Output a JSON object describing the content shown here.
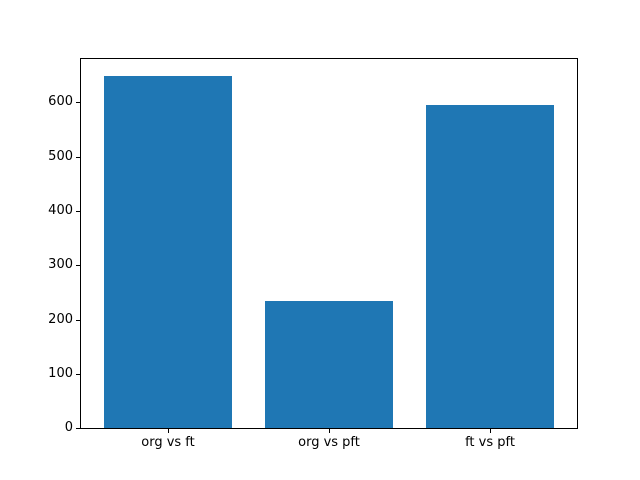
{
  "figure": {
    "background_color": "#ffffff"
  },
  "chart_data": {
    "type": "bar",
    "title": "",
    "xlabel": "",
    "ylabel": "",
    "categories": [
      "org vs ft",
      "org vs pft",
      "ft vs pft"
    ],
    "values": [
      648,
      235,
      596
    ],
    "bar_color": "#1f77b4",
    "bar_width": 0.8,
    "ylim": [
      0,
      680
    ],
    "yticks": [
      0,
      100,
      200,
      300,
      400,
      500,
      600
    ],
    "grid": false,
    "legend_position": "none",
    "axis_color": "#000000",
    "tick_label_color": "#000000"
  }
}
